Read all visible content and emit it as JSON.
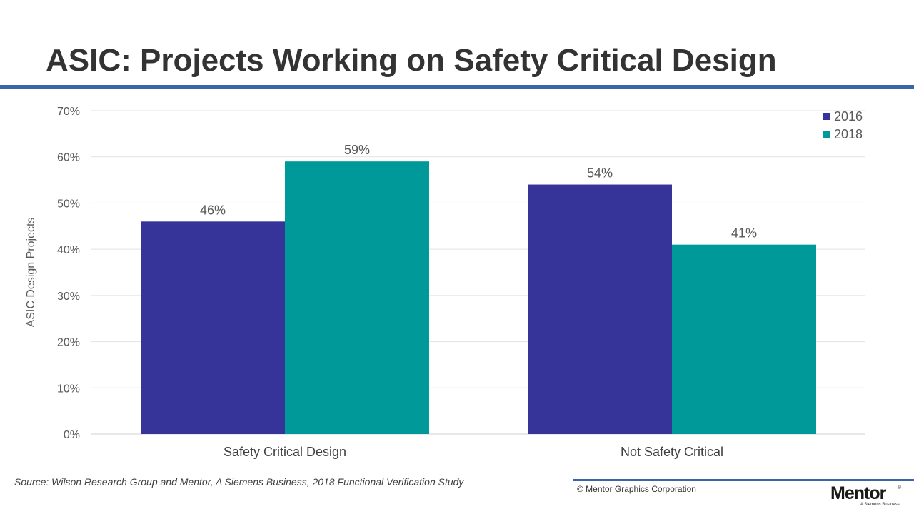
{
  "slide": {
    "title": "ASIC: Projects Working on Safety Critical Design",
    "source": "Source:  Wilson Research Group and Mentor, A Siemens Business, 2018 Functional Verification Study",
    "copyright": "© Mentor Graphics Corporation",
    "logo": {
      "wordmark": "Mentor",
      "tagline": "A Siemens Business"
    },
    "colors": {
      "title_rule": "#3a66a7",
      "title_text": "#333333"
    }
  },
  "chart_data": {
    "type": "bar",
    "categories": [
      "Safety Critical Design",
      "Not Safety Critical"
    ],
    "series": [
      {
        "name": "2016",
        "values": [
          46,
          54
        ],
        "labels": [
          "46%",
          "54%"
        ],
        "color": "#363399"
      },
      {
        "name": "2018",
        "values": [
          59,
          41
        ],
        "labels": [
          "59%",
          "41%"
        ],
        "color": "#009999"
      }
    ],
    "ylabel": "ASIC Design Projects",
    "ylim": [
      0,
      70
    ],
    "yticks": [
      0,
      10,
      20,
      30,
      40,
      50,
      60,
      70
    ],
    "ytick_labels": [
      "0%",
      "10%",
      "20%",
      "30%",
      "40%",
      "50%",
      "60%",
      "70%"
    ],
    "grid": true,
    "legend_position": "top-right"
  }
}
